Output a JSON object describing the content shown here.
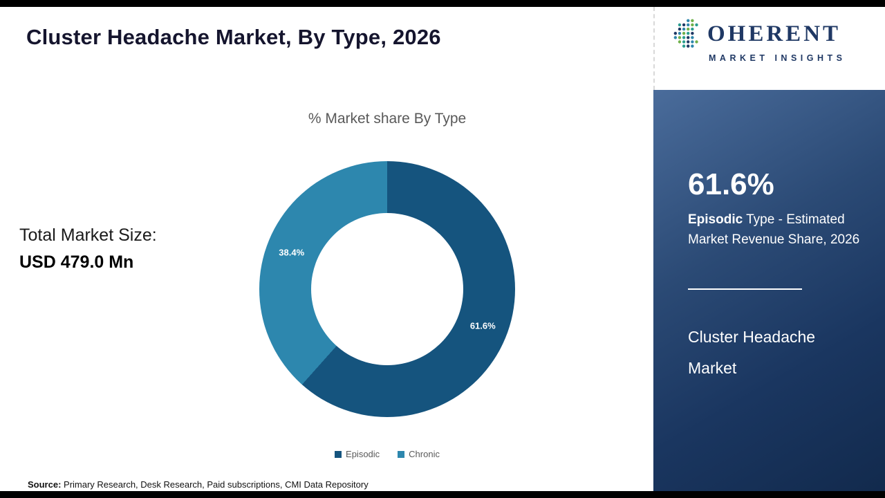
{
  "page": {
    "title": "Cluster Headache Market,  By Type, 2026",
    "source_label": "Source:",
    "source_text": " Primary Research, Desk Research, Paid subscriptions, CMI Data Repository"
  },
  "logo": {
    "brand_mark_letter": "C",
    "brand_rest": "OHERENT",
    "subtitle": "MARKET INSIGHTS",
    "dot_colors": [
      "#2E86AB",
      "#6FB04A",
      "#2A9D8F",
      "#1F3864"
    ]
  },
  "left": {
    "total_label": "Total Market Size:",
    "total_value": "USD 479.0 Mn"
  },
  "chart_data": {
    "type": "pie",
    "subtype": "donut",
    "title": "% Market share  By Type",
    "categories": [
      "Episodic",
      "Chronic"
    ],
    "values": [
      61.6,
      38.4
    ],
    "labels": [
      "61.6%",
      "38.4%"
    ],
    "colors": [
      "#15547e",
      "#2d87ae"
    ],
    "legend_position": "bottom",
    "start_angle": "top",
    "direction": "clockwise"
  },
  "sidebar": {
    "stat_value": "61.6%",
    "stat_bold": "Episodic",
    "stat_rest": " Type - Estimated Market Revenue Share, 2026",
    "market_name": "Cluster Headache Market"
  }
}
